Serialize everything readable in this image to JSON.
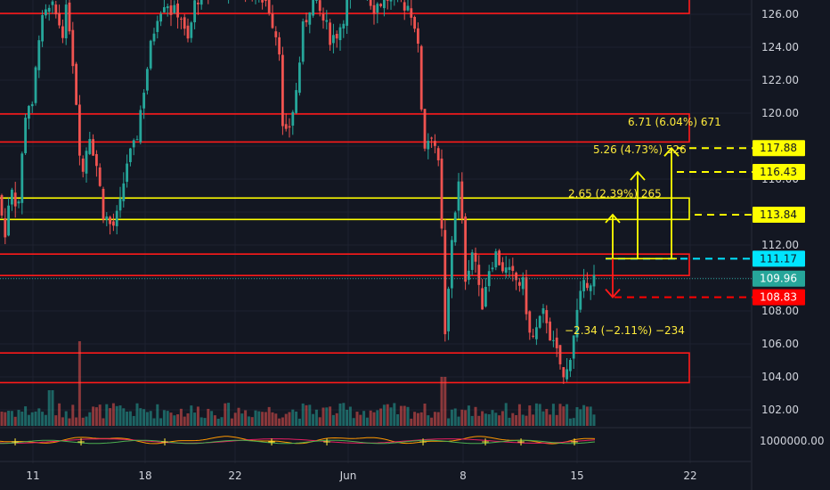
{
  "chart_data": {
    "type": "candlestick",
    "y_axis": {
      "range": [
        101,
        127
      ],
      "ticks": [
        "102.00",
        "104.00",
        "106.00",
        "108.00",
        "110.00",
        "112.00",
        "114.00",
        "116.00",
        "118.00",
        "120.00",
        "122.00",
        "124.00",
        "126.00"
      ],
      "side": "right"
    },
    "x_axis": {
      "ticks": [
        "11",
        "18",
        "22",
        "Jun",
        "8",
        "15",
        "22"
      ]
    },
    "volume_axis_label": "1000000.00",
    "price_tags": [
      {
        "id": "t11788",
        "value": 117.88,
        "label": "117.88",
        "color": "#ffff00"
      },
      {
        "id": "t11643",
        "value": 116.43,
        "label": "116.43",
        "color": "#ffff00"
      },
      {
        "id": "t11384",
        "value": 113.84,
        "label": "113.84",
        "color": "#ffff00"
      },
      {
        "id": "t11117",
        "value": 111.17,
        "label": "111.17",
        "color": "#00e5ff"
      },
      {
        "id": "t10996",
        "value": 109.96,
        "label": "109.96",
        "color": "#26a69a"
      },
      {
        "id": "t10883",
        "value": 108.83,
        "label": "108.83",
        "color": "#ff0000"
      }
    ],
    "zones": [
      {
        "color": "red",
        "top": 126.95,
        "bottom": 126.05
      },
      {
        "color": "red",
        "top": 119.95,
        "bottom": 118.25
      },
      {
        "color": "yellow",
        "top": 114.85,
        "bottom": 113.55
      },
      {
        "color": "red",
        "top": 111.45,
        "bottom": 110.15
      },
      {
        "color": "red",
        "top": 105.45,
        "bottom": 103.65
      }
    ],
    "projections": [
      {
        "label": "6.71 (6.04%) 671",
        "from": 111.17,
        "to": 117.88
      },
      {
        "label": "5.26 (4.73%) 526",
        "from": 111.17,
        "to": 116.43
      },
      {
        "label": "2.65 (2.39%) 265",
        "from": 111.17,
        "to": 113.84
      },
      {
        "label": "−2.34 (−2.11%) −234",
        "from": 111.17,
        "to": 108.83
      }
    ],
    "last_price": 109.96,
    "up_color": "#26a69a",
    "down_color": "#ef5350",
    "zone_color": "#ff1a1a",
    "zone_yellow": "#ffff00"
  }
}
